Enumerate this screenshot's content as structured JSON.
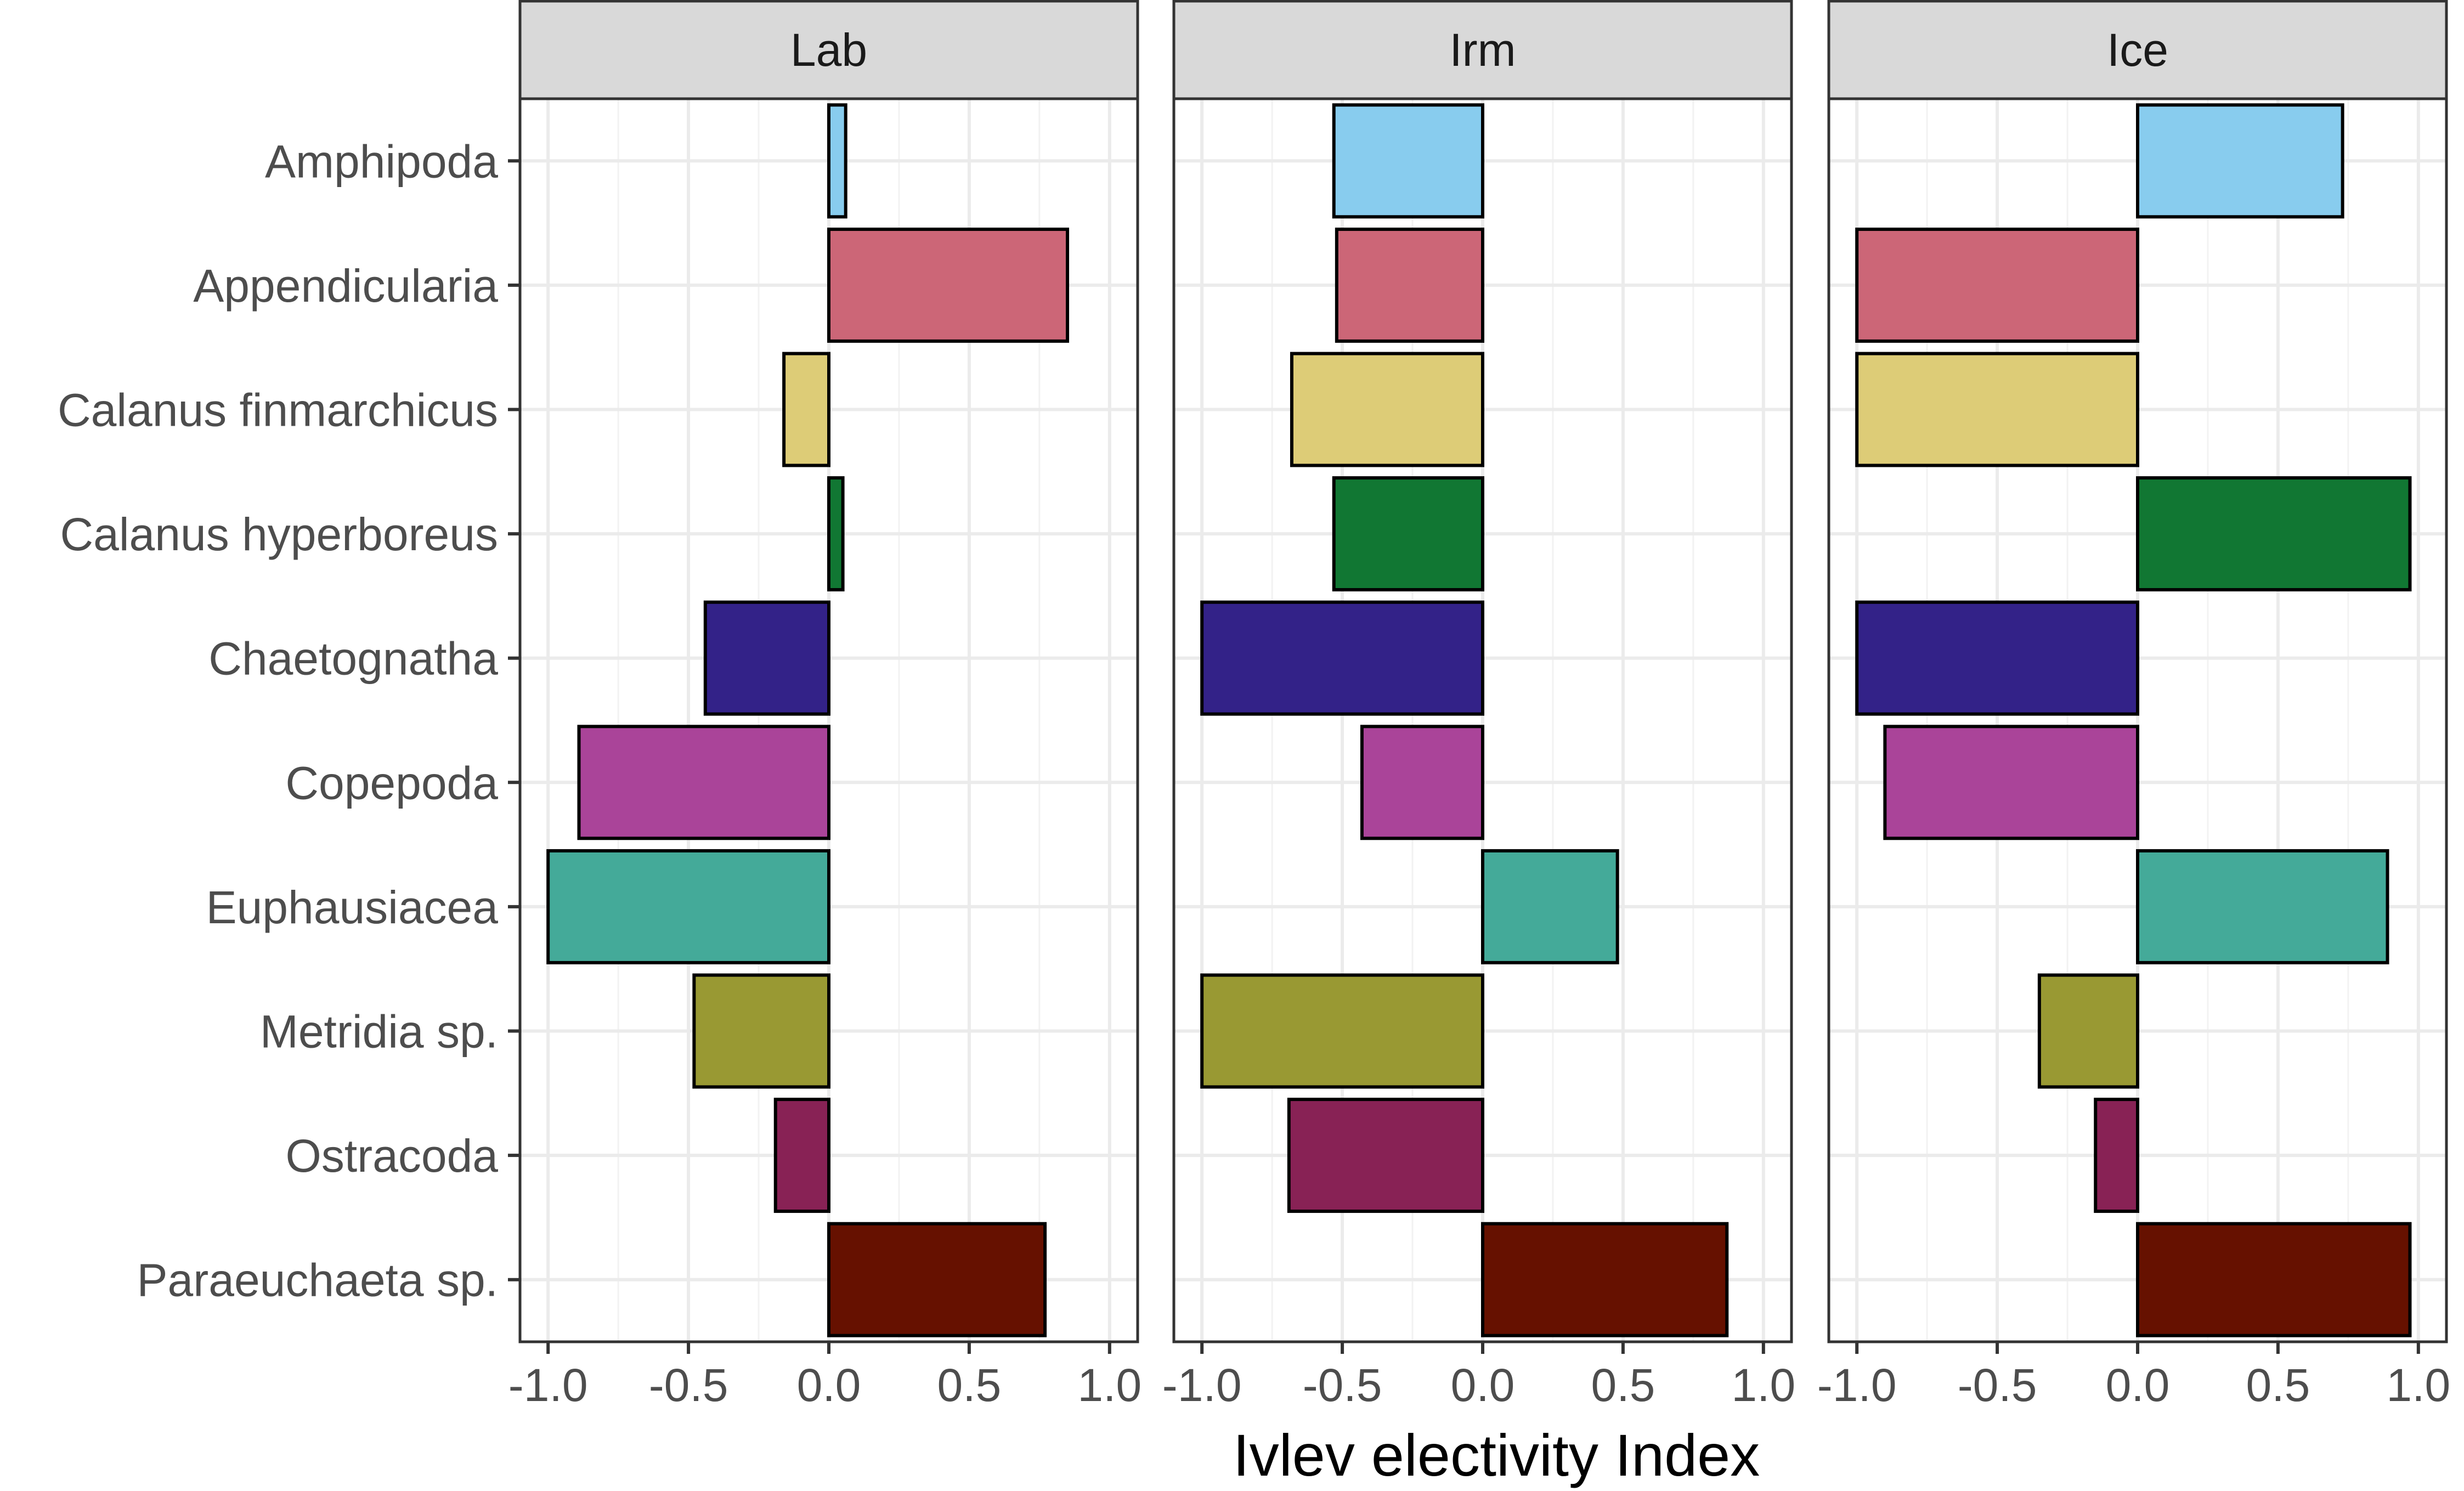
{
  "chart_data": {
    "type": "bar",
    "orientation": "horizontal",
    "facets": [
      "Lab",
      "Irm",
      "Ice"
    ],
    "categories": [
      "Amphipoda",
      "Appendicularia",
      "Calanus finmarchicus",
      "Calanus hyperboreus",
      "Chaetognatha",
      "Copepoda",
      "Euphausiacea",
      "Metridia sp.",
      "Ostracoda",
      "Paraeuchaeta sp."
    ],
    "series": [
      {
        "name": "Lab",
        "values": [
          0.06,
          0.85,
          -0.16,
          0.05,
          -0.44,
          -0.89,
          -1.0,
          -0.48,
          -0.19,
          0.77
        ]
      },
      {
        "name": "Irm",
        "values": [
          -0.53,
          -0.52,
          -0.68,
          -0.53,
          -1.0,
          -0.43,
          0.48,
          -1.0,
          -0.69,
          0.87
        ]
      },
      {
        "name": "Ice",
        "values": [
          0.73,
          -1.0,
          -1.0,
          0.97,
          -1.0,
          -0.9,
          0.89,
          -0.35,
          -0.15,
          0.97
        ]
      }
    ],
    "colors": [
      "#88CCEE",
      "#CC6677",
      "#DDCC77",
      "#117733",
      "#332288",
      "#AA4499",
      "#44AA99",
      "#999933",
      "#882255",
      "#661100"
    ],
    "xlim": [
      -1.1,
      1.1
    ],
    "xticks": [
      -1.0,
      -0.5,
      0.0,
      0.5,
      1.0
    ],
    "xtick_labels": [
      "-1.0",
      "-0.5",
      "0.0",
      "0.5",
      "1.0"
    ],
    "xlabel": "Ivlev electivity Index",
    "ylabel": "",
    "grid": true,
    "legend": "none"
  }
}
